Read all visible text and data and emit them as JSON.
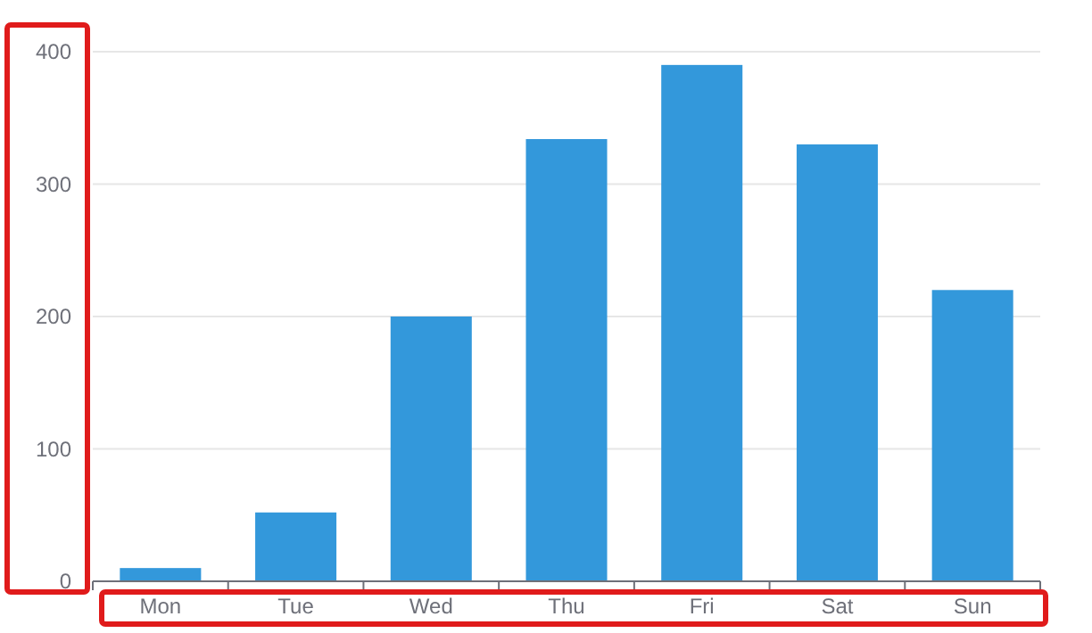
{
  "chart_data": {
    "type": "bar",
    "categories": [
      "Mon",
      "Tue",
      "Wed",
      "Thu",
      "Fri",
      "Sat",
      "Sun"
    ],
    "values": [
      10,
      52,
      200,
      334,
      390,
      330,
      220
    ],
    "color": "#3398db",
    "ylim": [
      0,
      400
    ],
    "yticks": [
      0,
      100,
      200,
      300,
      400
    ],
    "grid": "y"
  }
}
